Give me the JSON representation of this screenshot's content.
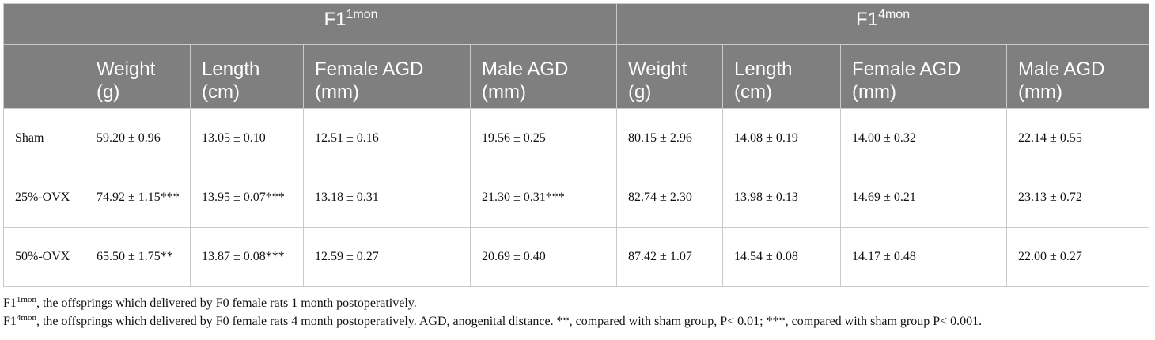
{
  "header": {
    "groups": [
      {
        "base": "F1",
        "sup": "1mon"
      },
      {
        "base": "F1",
        "sup": "4mon"
      }
    ],
    "columns": [
      "Weight (g)",
      "Length (cm)",
      "Female AGD (mm)",
      "Male AGD (mm)",
      "Weight (g)",
      "Length (cm)",
      "Female AGD (mm)",
      "Male AGD (mm)"
    ]
  },
  "rows": [
    {
      "group": "Sham",
      "cells": [
        "59.20 ± 0.96",
        "13.05 ± 0.10",
        "12.51 ± 0.16",
        "19.56 ± 0.25",
        "80.15 ± 2.96",
        "14.08 ± 0.19",
        "14.00 ± 0.32",
        "22.14 ± 0.55"
      ]
    },
    {
      "group": "25%-OVX",
      "cells": [
        "74.92 ± 1.15***",
        "13.95 ± 0.07***",
        "13.18 ± 0.31",
        "21.30 ± 0.31***",
        "82.74 ± 2.30",
        "13.98 ± 0.13",
        "14.69 ± 0.21",
        "23.13 ± 0.72"
      ]
    },
    {
      "group": "50%-OVX",
      "cells": [
        "65.50 ± 1.75**",
        "13.87 ± 0.08***",
        "12.59 ± 0.27",
        "20.69 ± 0.40",
        "87.42 ± 1.07",
        "14.54 ± 0.08",
        "14.17 ± 0.48",
        "22.00 ± 0.27"
      ]
    }
  ],
  "footnotes": [
    {
      "base": "F1",
      "sup": "1mon",
      "text": ", the offsprings which delivered by F0 female rats 1 month postoperatively."
    },
    {
      "base": "F1",
      "sup": "4mon",
      "text": ", the offsprings which delivered by F0 female rats 4 month postoperatively. AGD, anogenital distance. **, compared with sham group, P< 0.01; ***, compared with sham group P< 0.001."
    }
  ]
}
